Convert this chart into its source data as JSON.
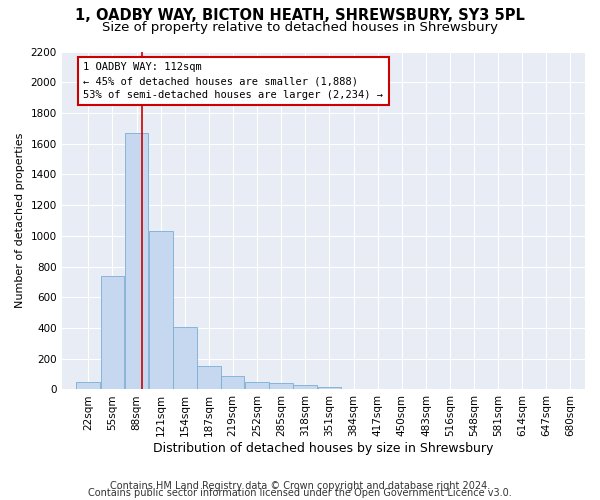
{
  "title1": "1, OADBY WAY, BICTON HEATH, SHREWSBURY, SY3 5PL",
  "title2": "Size of property relative to detached houses in Shrewsbury",
  "xlabel": "Distribution of detached houses by size in Shrewsbury",
  "ylabel": "Number of detached properties",
  "bin_labels": [
    "22sqm",
    "55sqm",
    "88sqm",
    "121sqm",
    "154sqm",
    "187sqm",
    "219sqm",
    "252sqm",
    "285sqm",
    "318sqm",
    "351sqm",
    "384sqm",
    "417sqm",
    "450sqm",
    "483sqm",
    "516sqm",
    "548sqm",
    "581sqm",
    "614sqm",
    "647sqm",
    "680sqm"
  ],
  "bin_edges": [
    22,
    55,
    88,
    121,
    154,
    187,
    219,
    252,
    285,
    318,
    351,
    384,
    417,
    450,
    483,
    516,
    548,
    581,
    614,
    647,
    680
  ],
  "bar_heights": [
    50,
    740,
    1670,
    1030,
    405,
    150,
    85,
    47,
    42,
    28,
    18,
    5,
    2,
    1,
    0,
    0,
    0,
    0,
    0,
    0
  ],
  "bar_color": "#c5d8f0",
  "bar_edge_color": "#7aadd4",
  "property_size": 112,
  "red_line_color": "#cc0000",
  "annotation_text": "1 OADBY WAY: 112sqm\n← 45% of detached houses are smaller (1,888)\n53% of semi-detached houses are larger (2,234) →",
  "annotation_box_color": "#ffffff",
  "annotation_box_edge": "#cc0000",
  "ylim": [
    0,
    2200
  ],
  "yticks": [
    0,
    200,
    400,
    600,
    800,
    1000,
    1200,
    1400,
    1600,
    1800,
    2000,
    2200
  ],
  "footer1": "Contains HM Land Registry data © Crown copyright and database right 2024.",
  "footer2": "Contains public sector information licensed under the Open Government Licence v3.0.",
  "fig_facecolor": "#ffffff",
  "ax_facecolor": "#e8edf5",
  "grid_color": "#ffffff",
  "title1_fontsize": 10.5,
  "title2_fontsize": 9.5,
  "xlabel_fontsize": 9,
  "ylabel_fontsize": 8,
  "tick_fontsize": 7.5,
  "annot_fontsize": 7.5,
  "footer_fontsize": 7
}
